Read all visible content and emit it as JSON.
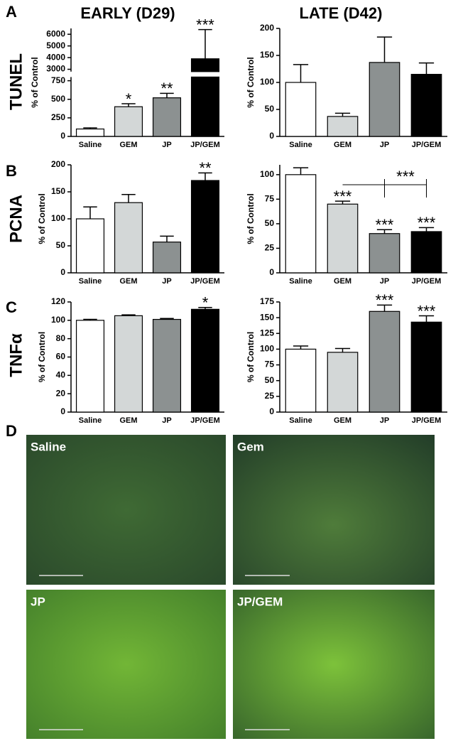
{
  "column_titles": [
    "EARLY (D29)",
    "LATE (D42)"
  ],
  "row_titles": [
    "TUNEL",
    "PCNA",
    "TNFα"
  ],
  "panels": [
    "A",
    "B",
    "C",
    "D"
  ],
  "panel_d": {
    "labels": [
      "Saline",
      "Gem",
      "JP",
      "JP/GEM"
    ]
  },
  "chart_data": [
    {
      "type": "bar",
      "ylabel": "% of Control",
      "categories": [
        "Saline",
        "GEM",
        "JP",
        "JP/GEM"
      ],
      "colors": [
        "#ffffff",
        "#d3d7d7",
        "#8c9191",
        "#000000"
      ],
      "values": [
        100,
        400,
        520,
        3900
      ],
      "errors": [
        15,
        40,
        60,
        2500
      ],
      "stars": [
        null,
        "*",
        "**",
        "***"
      ],
      "ylim": [
        0,
        800
      ],
      "yticks": [
        0,
        250,
        500,
        750
      ],
      "y_break": {
        "ylim": [
          2800,
          6500
        ],
        "yticks": [
          3000,
          4000,
          5000,
          6000
        ]
      }
    },
    {
      "type": "bar",
      "ylabel": "% of Control",
      "categories": [
        "Saline",
        "GEM",
        "JP",
        "JP/GEM"
      ],
      "colors": [
        "#ffffff",
        "#d3d7d7",
        "#8c9191",
        "#000000"
      ],
      "values": [
        100,
        37,
        137,
        115
      ],
      "errors": [
        33,
        6,
        47,
        21
      ],
      "ylim": [
        0,
        200
      ],
      "yticks": [
        0,
        50,
        100,
        150,
        200
      ]
    },
    {
      "type": "bar",
      "ylabel": "% of Control",
      "categories": [
        "Saline",
        "GEM",
        "JP",
        "JP/GEM"
      ],
      "colors": [
        "#ffffff",
        "#d3d7d7",
        "#8c9191",
        "#000000"
      ],
      "values": [
        100,
        130,
        57,
        171
      ],
      "errors": [
        22,
        15,
        11,
        14
      ],
      "stars": [
        null,
        null,
        null,
        "**"
      ],
      "ylim": [
        0,
        200
      ],
      "yticks": [
        0,
        50,
        100,
        150,
        200
      ]
    },
    {
      "type": "bar",
      "ylabel": "% of Control",
      "categories": [
        "Saline",
        "GEM",
        "JP",
        "JP/GEM"
      ],
      "colors": [
        "#ffffff",
        "#d3d7d7",
        "#8c9191",
        "#000000"
      ],
      "values": [
        100,
        70,
        40,
        42
      ],
      "errors": [
        7,
        3,
        4,
        4
      ],
      "stars": [
        null,
        "***",
        "***",
        "***"
      ],
      "bracket": {
        "from": 1,
        "to": [
          2,
          3
        ],
        "label": "***"
      },
      "ylim": [
        0,
        110
      ],
      "yticks": [
        0,
        25,
        50,
        75,
        100
      ]
    },
    {
      "type": "bar",
      "ylabel": "% of Control",
      "categories": [
        "Saline",
        "GEM",
        "JP",
        "JP/GEM"
      ],
      "colors": [
        "#ffffff",
        "#d3d7d7",
        "#8c9191",
        "#000000"
      ],
      "values": [
        100,
        105,
        101,
        112
      ],
      "errors": [
        1,
        1,
        1,
        2
      ],
      "stars": [
        null,
        null,
        null,
        "*"
      ],
      "ylim": [
        0,
        120
      ],
      "yticks": [
        0,
        20,
        40,
        60,
        80,
        100,
        120
      ]
    },
    {
      "type": "bar",
      "ylabel": "% of Control",
      "categories": [
        "Saline",
        "GEM",
        "JP",
        "JP/GEM"
      ],
      "colors": [
        "#ffffff",
        "#d3d7d7",
        "#8c9191",
        "#000000"
      ],
      "values": [
        100,
        95,
        160,
        143
      ],
      "errors": [
        5,
        6,
        10,
        10
      ],
      "stars": [
        null,
        null,
        "***",
        "***"
      ],
      "ylim": [
        0,
        175
      ],
      "yticks": [
        0,
        25,
        50,
        75,
        100,
        125,
        150,
        175
      ]
    }
  ]
}
